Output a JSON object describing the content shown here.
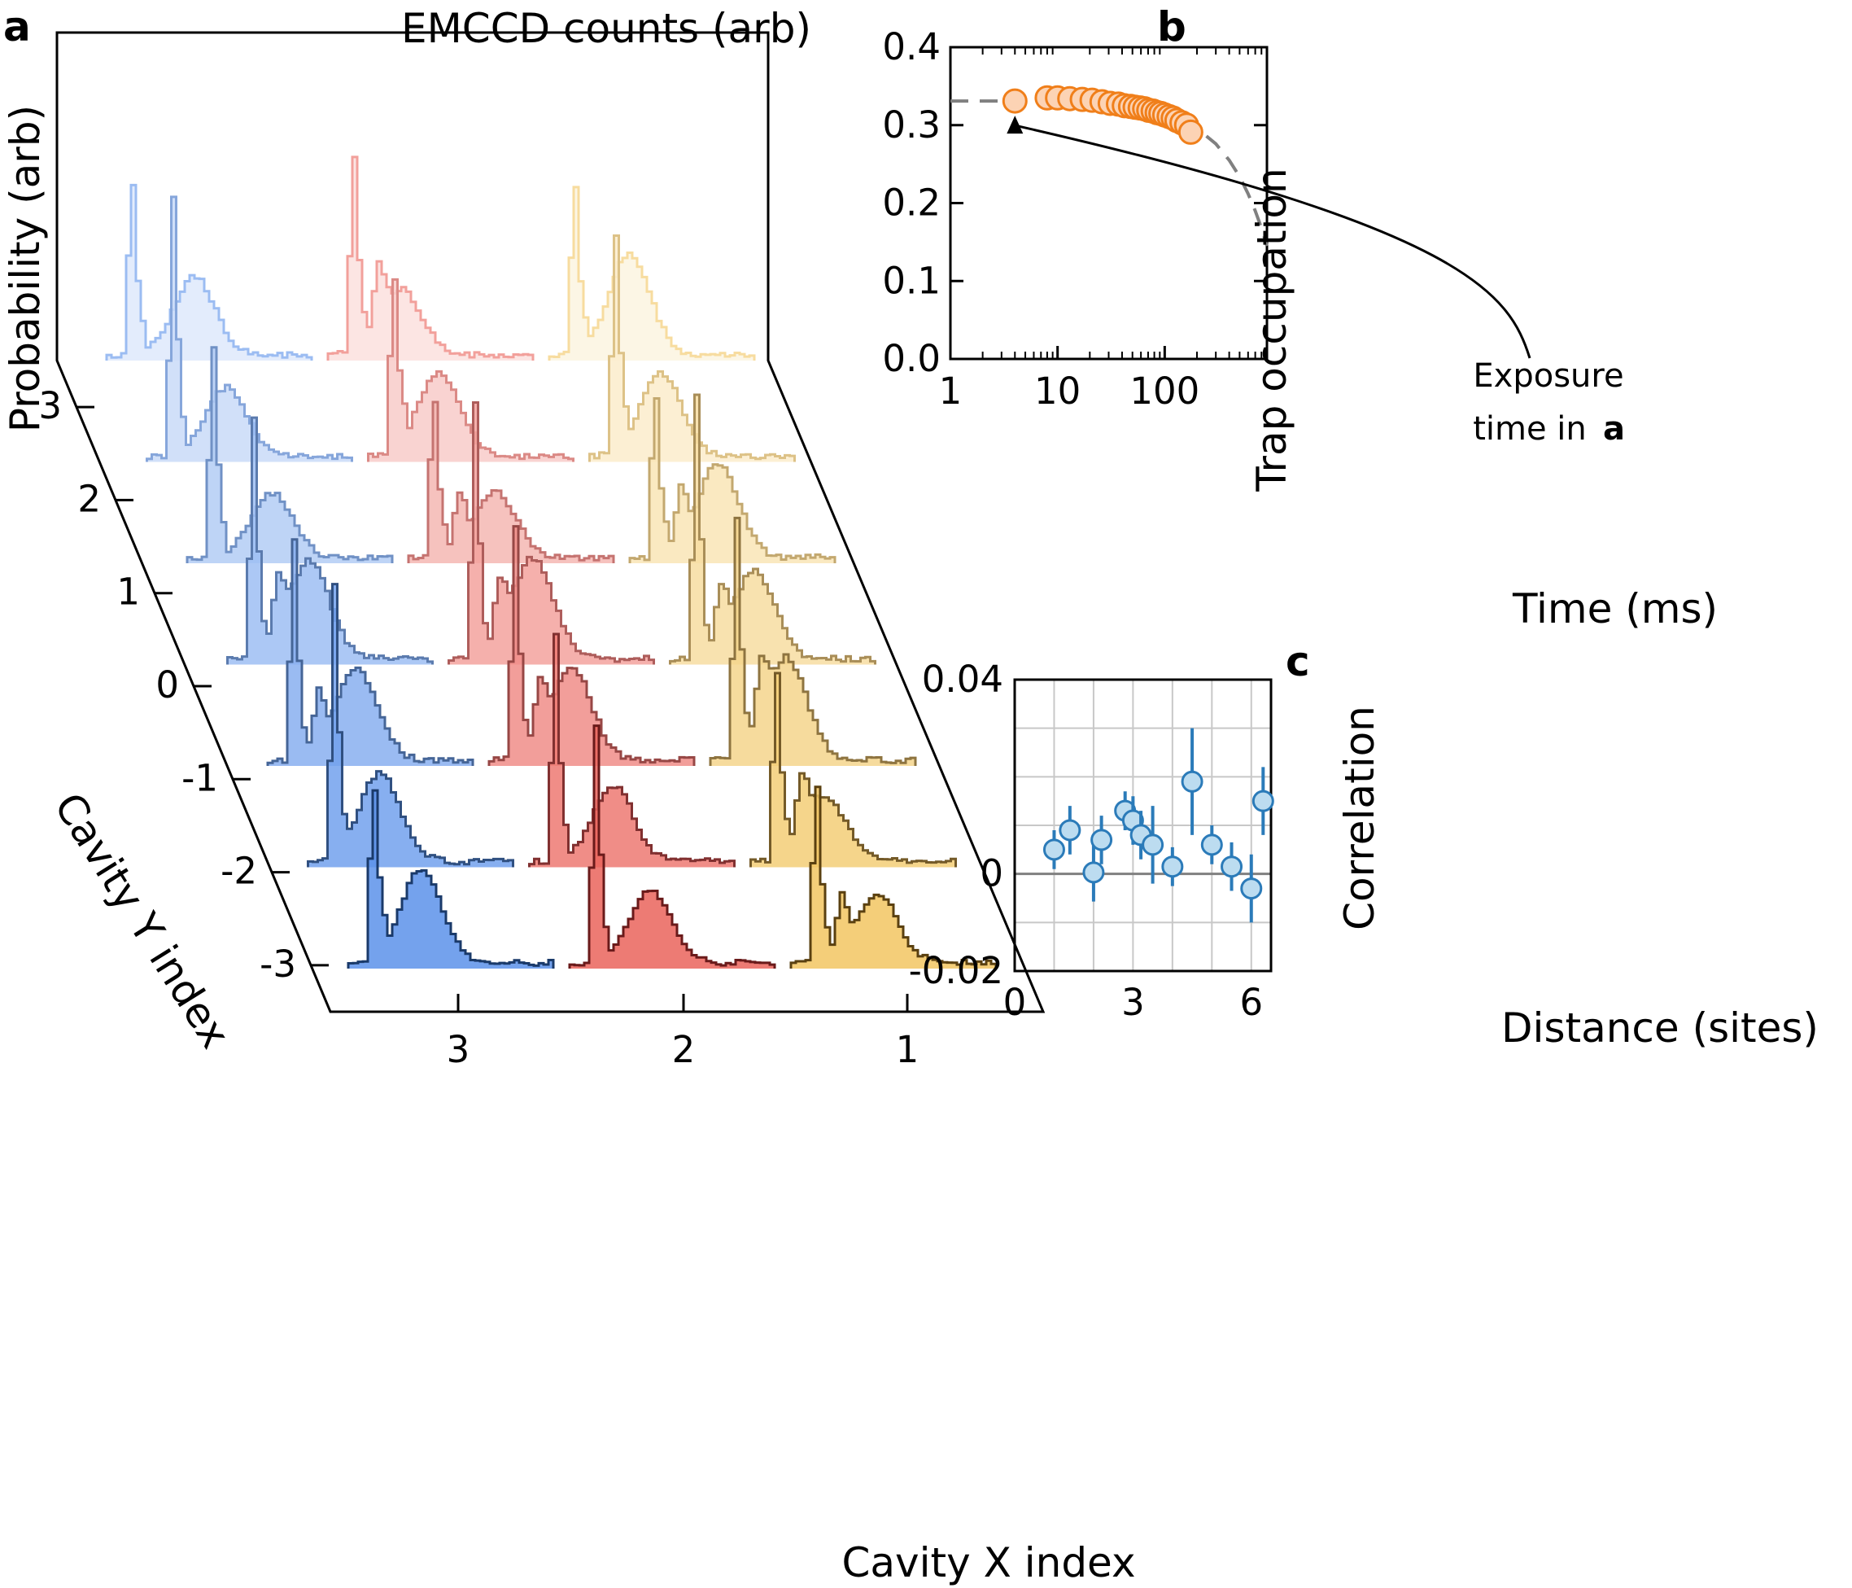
{
  "chart_data": [
    {
      "panel": "a",
      "type": "histogram-grid",
      "title": "EMCCD counts (arb)",
      "zlabel": "Probability (arb)",
      "xlabel": "Cavity X index",
      "ylabel": "Cavity Y index",
      "x_ticks": [
        "3",
        "2",
        "1"
      ],
      "y_ticks": [
        "3",
        "2",
        "1",
        "0",
        "-1",
        "-2",
        "-3"
      ],
      "grid": "3 columns x 7 rows; each cell a count histogram with a narrow background peak and a broad atom-signal hump",
      "colors": {
        "column_x3": "#4a86e8",
        "column_x2": "#e8534a",
        "column_x1": "#f0c050"
      }
    },
    {
      "panel": "b",
      "type": "scatter",
      "xlabel": "Time (ms)",
      "ylabel": "Trap occupation",
      "xscale": "log",
      "xlim": [
        1,
        900
      ],
      "ylim": [
        0,
        0.4
      ],
      "x_ticks": [
        "1",
        "10",
        "100"
      ],
      "y_ticks": [
        "0.0",
        "0.1",
        "0.2",
        "0.3",
        "0.4"
      ],
      "annotation": [
        "Exposure",
        "time in",
        "a"
      ],
      "series": [
        {
          "x": [
            4,
            8,
            10,
            13,
            17,
            21,
            26,
            31,
            37,
            42,
            48,
            53,
            59,
            65,
            71,
            78,
            85,
            92,
            100,
            110,
            120,
            130,
            145,
            160,
            175
          ],
          "y": [
            0.331,
            0.335,
            0.335,
            0.334,
            0.333,
            0.332,
            0.33,
            0.328,
            0.327,
            0.325,
            0.324,
            0.323,
            0.322,
            0.321,
            0.319,
            0.318,
            0.316,
            0.315,
            0.313,
            0.311,
            0.309,
            0.306,
            0.303,
            0.3,
            0.291
          ]
        }
      ],
      "fit": {
        "style": "dashed",
        "x": [
          1,
          2,
          5,
          10,
          20,
          50,
          100,
          200,
          300,
          400,
          500,
          600,
          700,
          800,
          900
        ],
        "y": [
          0.331,
          0.331,
          0.331,
          0.33,
          0.329,
          0.325,
          0.318,
          0.296,
          0.276,
          0.255,
          0.234,
          0.212,
          0.19,
          0.168,
          0.145
        ]
      },
      "colors": {
        "marker_fill": "#fcd3b4",
        "marker_stroke": "#f07f1a",
        "fit": "#808080"
      }
    },
    {
      "panel": "c",
      "type": "scatter",
      "xlabel": "Distance (sites)",
      "ylabel": "Correlation",
      "xlim": [
        0,
        6.5
      ],
      "ylim": [
        -0.02,
        0.04
      ],
      "x_ticks": [
        "0",
        "3",
        "6"
      ],
      "y_ticks": [
        "-0.02",
        "0",
        "0.04"
      ],
      "grid": true,
      "series": [
        {
          "x": [
            1.0,
            1.4,
            2.0,
            2.2,
            2.8,
            3.0,
            3.2,
            3.5,
            4.0,
            4.5,
            5.0,
            5.5,
            6.0,
            6.3
          ],
          "y": [
            0.005,
            0.009,
            0.0003,
            0.007,
            0.013,
            0.011,
            0.008,
            0.006,
            0.0015,
            0.019,
            0.006,
            0.0015,
            -0.003,
            0.015
          ],
          "err": [
            0.004,
            0.005,
            0.006,
            0.005,
            0.004,
            0.005,
            0.005,
            0.008,
            0.004,
            0.011,
            0.004,
            0.005,
            0.007,
            0.007
          ]
        }
      ],
      "colors": {
        "marker_fill": "#bcdcf0",
        "marker_stroke": "#2b7bb9"
      }
    }
  ]
}
